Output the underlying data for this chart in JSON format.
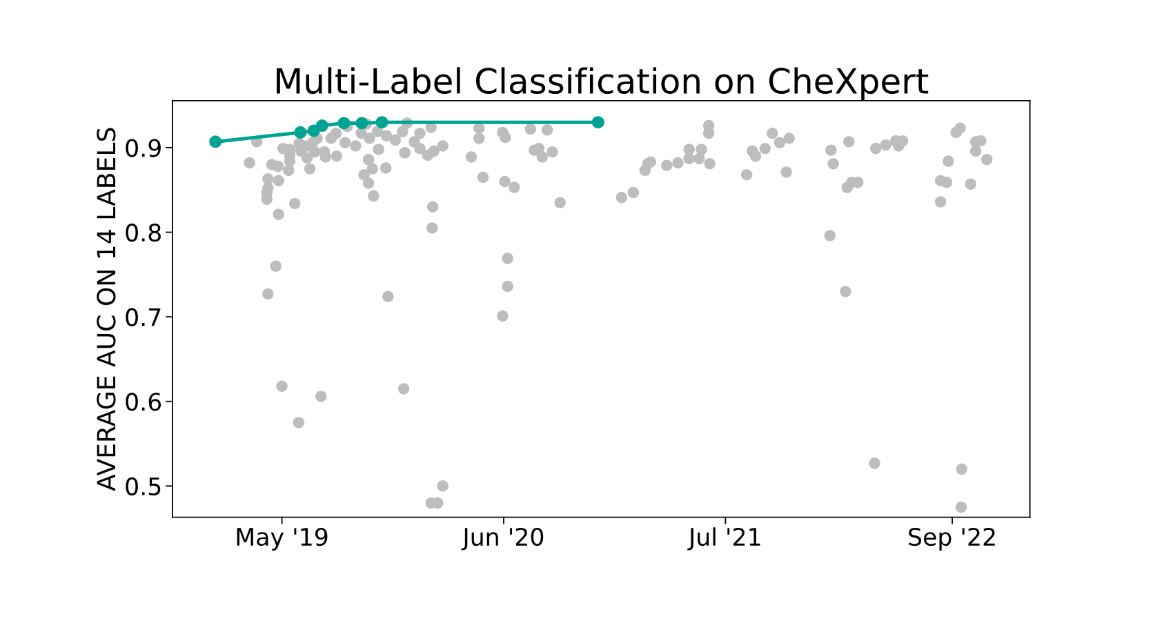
{
  "chart_data": {
    "type": "scatter",
    "title": "Multi-Label Classification on CheXpert",
    "ylabel": "AVERAGE AUC ON 14 LABELS",
    "xlim": [
      "2018-11-05",
      "2023-01-18"
    ],
    "ylim": [
      0.463,
      0.9556
    ],
    "yticks": [
      0.5,
      0.6,
      0.7,
      0.8,
      0.9
    ],
    "xticks": [
      {
        "value": "2019-05-20",
        "label": "May '19"
      },
      {
        "value": "2020-06-20",
        "label": "Jun '20"
      },
      {
        "value": "2021-07-22",
        "label": "Jul '21"
      },
      {
        "value": "2022-09-01",
        "label": "Sep '22"
      }
    ],
    "grid": false,
    "legend": false,
    "marker": "circle",
    "series": [
      {
        "color": "#bdbdbd",
        "x": [
          "2019-04-05",
          "2019-03-23",
          "2019-05-02",
          "2019-05-13",
          "2019-05-14",
          "2019-04-25",
          "2019-04-25",
          "2019-04-23",
          "2019-04-23",
          "2019-05-14",
          "2019-06-12",
          "2019-05-09",
          "2019-04-25",
          "2019-05-22",
          "2019-06-03",
          "2019-06-03",
          "2019-06-03",
          "2019-06-01",
          "2019-06-20",
          "2019-06-23",
          "2019-07-04",
          "2019-07-04",
          "2019-07-09",
          "2019-07-14",
          "2019-07-18",
          "2019-07-22",
          "2019-08-04",
          "2019-08-06",
          "2019-08-16",
          "2019-08-25",
          "2019-08-26",
          "2019-09-10",
          "2019-09-14",
          "2019-09-29",
          "2019-10-09",
          "2019-10-18",
          "2019-10-24",
          "2019-10-22",
          "2019-10-29",
          "2019-10-14",
          "2019-10-22",
          "2019-10-31",
          "2019-11-09",
          "2019-11-22",
          "2019-11-07",
          "2019-11-23",
          "2019-12-09",
          "2019-12-22",
          "2019-12-26",
          "2019-12-30",
          "2020-01-12",
          "2020-01-22",
          "2020-01-22",
          "2020-02-05",
          "2020-02-16",
          "2020-03-03",
          "2020-02-11",
          "2020-02-14",
          "2020-02-13",
          "2020-04-23",
          "2020-05-07",
          "2020-05-07",
          "2020-05-14",
          "2020-06-18",
          "2020-06-23",
          "2020-06-22",
          "2020-07-09",
          "2020-06-27",
          "2020-06-27",
          "2020-06-18",
          "2019-05-20",
          "2019-07-29",
          "2019-06-19",
          "2019-11-26",
          "2019-12-24",
          "2020-03-03",
          "2020-02-11",
          "2020-02-23",
          "2020-08-07",
          "2020-09-06",
          "2020-08-14",
          "2020-08-22",
          "2020-08-28",
          "2020-09-15",
          "2020-09-29",
          "2021-01-17",
          "2021-02-07",
          "2021-02-28",
          "2021-03-05",
          "2021-03-10",
          "2021-04-08",
          "2021-04-28",
          "2021-05-18",
          "2021-05-18",
          "2021-06-05",
          "2021-06-09",
          "2021-06-22",
          "2021-06-22",
          "2021-06-24",
          "2021-08-29",
          "2021-09-08",
          "2021-09-14",
          "2021-10-01",
          "2021-10-14",
          "2021-10-27",
          "2021-11-13",
          "2021-11-08",
          "2022-01-27",
          "2022-01-31",
          "2022-02-28",
          "2022-03-05",
          "2022-03-16",
          "2022-02-25",
          "2022-01-25",
          "2022-02-22",
          "2022-04-15",
          "2022-04-17",
          "2022-05-05",
          "2022-05-23",
          "2022-06-04",
          "2022-05-28",
          "2022-08-11",
          "2022-08-22",
          "2022-08-11",
          "2022-08-25",
          "2022-09-08",
          "2022-09-15",
          "2022-10-04",
          "2022-10-13",
          "2022-10-22",
          "2022-10-13",
          "2022-11-02",
          "2022-09-18",
          "2022-09-17"
        ],
        "values": [
          0.907,
          0.882,
          0.88,
          0.878,
          0.861,
          0.863,
          0.852,
          0.846,
          0.839,
          0.821,
          0.834,
          0.76,
          0.727,
          0.899,
          0.898,
          0.891,
          0.884,
          0.873,
          0.905,
          0.896,
          0.902,
          0.888,
          0.875,
          0.906,
          0.895,
          0.911,
          0.895,
          0.889,
          0.911,
          0.917,
          0.89,
          0.906,
          0.925,
          0.902,
          0.917,
          0.928,
          0.911,
          0.886,
          0.875,
          0.868,
          0.858,
          0.843,
          0.898,
          0.876,
          0.919,
          0.914,
          0.909,
          0.919,
          0.894,
          0.929,
          0.907,
          0.917,
          0.899,
          0.891,
          0.896,
          0.902,
          0.924,
          0.83,
          0.805,
          0.889,
          0.923,
          0.911,
          0.865,
          0.918,
          0.912,
          0.86,
          0.853,
          0.769,
          0.736,
          0.701,
          0.618,
          0.606,
          0.575,
          0.724,
          0.615,
          0.5,
          0.48,
          0.48,
          0.922,
          0.921,
          0.897,
          0.899,
          0.889,
          0.895,
          0.835,
          0.841,
          0.847,
          0.873,
          0.881,
          0.883,
          0.879,
          0.882,
          0.898,
          0.887,
          0.887,
          0.898,
          0.926,
          0.917,
          0.881,
          0.868,
          0.896,
          0.89,
          0.899,
          0.917,
          0.906,
          0.911,
          0.871,
          0.897,
          0.881,
          0.907,
          0.859,
          0.859,
          0.853,
          0.796,
          0.73,
          0.527,
          0.899,
          0.903,
          0.908,
          0.908,
          0.902,
          0.861,
          0.859,
          0.836,
          0.884,
          0.918,
          0.923,
          0.857,
          0.907,
          0.908,
          0.896,
          0.886,
          0.52,
          0.475
        ]
      },
      {
        "type": "line",
        "color": "#00a393",
        "x": [
          "2019-01-21",
          "2019-06-22",
          "2019-07-16",
          "2019-07-31",
          "2019-09-08",
          "2019-10-10",
          "2019-11-15",
          "2020-12-06"
        ],
        "values": [
          0.907,
          0.918,
          0.92,
          0.926,
          0.929,
          0.929,
          0.93,
          0.93
        ]
      }
    ]
  }
}
